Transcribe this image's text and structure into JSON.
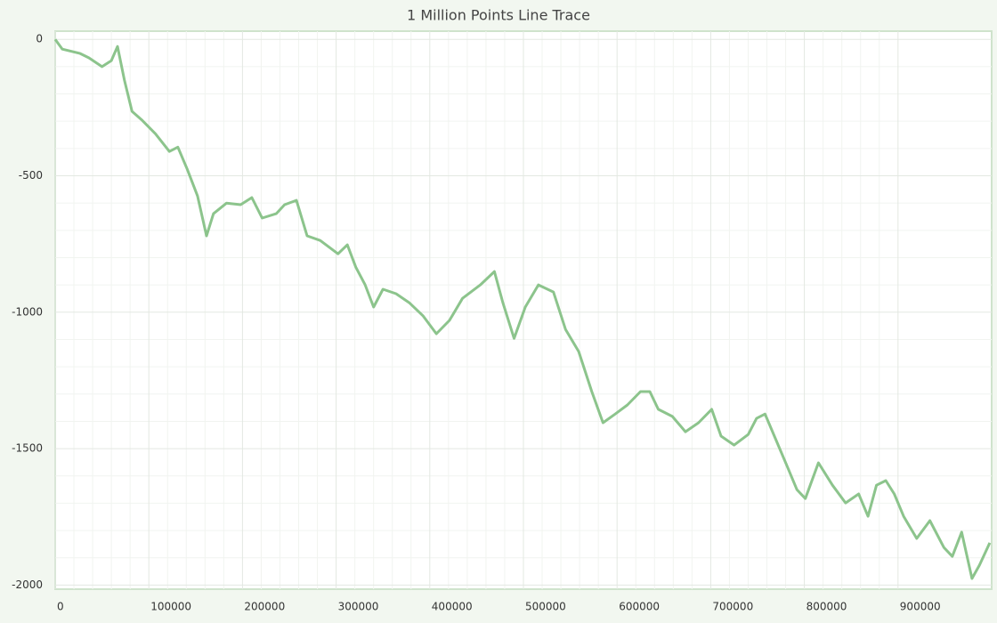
{
  "chart_data": {
    "type": "line",
    "title": "1 Million Points Line Trace",
    "x": [
      0,
      7600,
      26600,
      36000,
      50000,
      60000,
      66500,
      74000,
      82000,
      93000,
      107000,
      122000,
      131000,
      141000,
      152000,
      161600,
      169000,
      183000,
      198000,
      210000,
      221000,
      236000,
      245000,
      257600,
      269000,
      283000,
      302000,
      312000,
      321000,
      331000,
      340000,
      350000,
      364000,
      378000,
      393000,
      407000,
      421000,
      435000,
      454000,
      469000,
      478000,
      490000,
      502000,
      516000,
      532000,
      545000,
      559000,
      573000,
      585000,
      598000,
      611000,
      625000,
      635000,
      644000,
      659000,
      673000,
      687000,
      701000,
      711000,
      725000,
      740000,
      749000,
      758000,
      768000,
      782000,
      792000,
      801000,
      815000,
      830000,
      844000,
      858000,
      868000,
      877000,
      887000,
      896000,
      906000,
      920000,
      934000,
      949000,
      958000,
      968000,
      979000,
      987000,
      998000
    ],
    "series": [
      {
        "color": "#8cc48c",
        "values": [
          0,
          -36,
          -52,
          -68,
          -100,
          -78,
          -26,
          -150,
          -264,
          -297,
          -346,
          -411,
          -395,
          -476,
          -574,
          -720,
          -639,
          -600,
          -606,
          -580,
          -655,
          -639,
          -606,
          -590,
          -720,
          -737,
          -786,
          -753,
          -835,
          -900,
          -981,
          -916,
          -932,
          -965,
          -1014,
          -1079,
          -1030,
          -949,
          -900,
          -851,
          -965,
          -1096,
          -981,
          -900,
          -926,
          -1063,
          -1144,
          -1291,
          -1405,
          -1373,
          -1340,
          -1291,
          -1291,
          -1356,
          -1382,
          -1438,
          -1405,
          -1356,
          -1454,
          -1487,
          -1448,
          -1389,
          -1373,
          -1454,
          -1568,
          -1650,
          -1683,
          -1552,
          -1634,
          -1699,
          -1666,
          -1748,
          -1634,
          -1617,
          -1666,
          -1748,
          -1829,
          -1764,
          -1862,
          -1895,
          -1806,
          -1976,
          -1927,
          -1845
        ]
      }
    ],
    "xlim": [
      0,
      1000000
    ],
    "xticks": [
      0,
      100000,
      200000,
      300000,
      400000,
      500000,
      600000,
      700000,
      800000,
      900000
    ],
    "ylim": [
      -2015,
      30
    ],
    "yticks": [
      0,
      -500,
      -1000,
      -1500,
      -2000
    ],
    "grid": true,
    "minor_grid": true
  }
}
